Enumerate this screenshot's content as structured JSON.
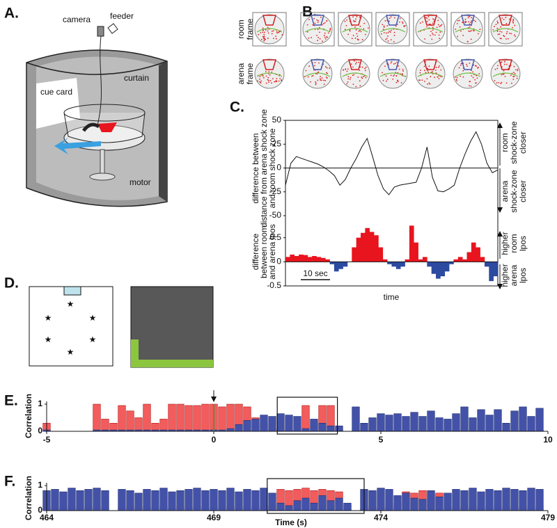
{
  "figure": {
    "panel_labels": [
      "A.",
      "B.",
      "C.",
      "D.",
      "E.",
      "F."
    ],
    "panel_a": {
      "camera": "camera",
      "feeder": "feeder",
      "curtain": "curtain",
      "cue_card": "cue card",
      "motor": "motor"
    },
    "panel_b": {
      "row_labels": [
        [
          "room",
          "frame"
        ],
        [
          "arena",
          "frame"
        ]
      ]
    }
  },
  "chart_data": [
    {
      "type": "line",
      "ylabel": [
        "difference between",
        "distance from arena shock zone",
        "and room shock zone"
      ],
      "annotations": {
        "upper": [
          "room",
          "shock-zone",
          "closer"
        ],
        "lower": [
          "arena",
          "shock-zone",
          "closer"
        ]
      },
      "values": [
        -18,
        5,
        12,
        10,
        8,
        6,
        4,
        1,
        -3,
        -8,
        -18,
        -12,
        0,
        10,
        22,
        31,
        12,
        -8,
        -22,
        -28,
        -20,
        -18,
        -17,
        -16,
        -15,
        0,
        22,
        -10,
        -24,
        -25,
        -22,
        -18,
        0,
        15,
        28,
        38,
        25,
        5,
        -5,
        -2
      ],
      "color": "#111111",
      "ylim": [
        -50,
        50
      ],
      "yticks": [
        50,
        25,
        0,
        -25,
        -50
      ]
    },
    {
      "type": "area",
      "ylabel": [
        "difference",
        "between room",
        "and arena lpos"
      ],
      "annotations": {
        "upper": [
          "higher",
          "room",
          "lpos"
        ],
        "lower": [
          "higher",
          "arena",
          "lpos"
        ]
      },
      "xlabel": "time",
      "scale_bar_label": "10 sec",
      "values": [
        0.1,
        0.15,
        0.12,
        0.15,
        0.14,
        0.1,
        0.12,
        0.1,
        0.08,
        0.05,
        -0.05,
        -0.2,
        -0.15,
        -0.1,
        0,
        0.3,
        0.5,
        0.6,
        0.7,
        0.62,
        0.55,
        0.3,
        0.05,
        -0.05,
        -0.1,
        -0.15,
        -0.1,
        0.05,
        0.75,
        0.4,
        0.05,
        0.1,
        -0.1,
        -0.25,
        -0.35,
        -0.3,
        -0.2,
        -0.05,
        0.05,
        0.1,
        0.05,
        0.2,
        0.4,
        0.3,
        0.1,
        -0.1,
        -0.4,
        -0.3
      ],
      "positive_color": "#e8141e",
      "negative_color": "#2b4aa0",
      "ylim": [
        -0.5,
        1
      ],
      "yticks": [
        0.5,
        0,
        -0.5
      ]
    },
    {
      "type": "bar",
      "ylabel": "Correlation",
      "x": [
        -5,
        -4.75,
        -4.5,
        -4.25,
        -4,
        -3.75,
        -3.5,
        -3.25,
        -3,
        -2.75,
        -2.5,
        -2.25,
        -2,
        -1.75,
        -1.5,
        -1.25,
        -1,
        -0.75,
        -0.5,
        -0.25,
        0,
        0.25,
        0.5,
        0.75,
        1,
        1.25,
        1.5,
        1.75,
        2,
        2.25,
        2.5,
        2.75,
        3,
        3.25,
        3.5,
        3.75,
        4,
        4.25,
        4.5,
        4.75,
        5,
        5.25,
        5.5,
        5.75,
        6,
        6.25,
        6.5,
        6.75,
        7,
        7.25,
        7.5,
        7.75,
        8,
        8.25,
        8.5,
        8.75,
        9,
        9.25,
        9.5,
        9.75
      ],
      "series": [
        {
          "color": "#f25c5c",
          "edgecolor": "#b01010",
          "values": [
            0.3,
            null,
            null,
            null,
            null,
            null,
            1.0,
            0.45,
            0.3,
            0.95,
            0.75,
            0.5,
            1.0,
            0.3,
            0.45,
            1.0,
            1.0,
            0.95,
            0.95,
            1.0,
            1.0,
            0.9,
            1.0,
            1.0,
            0.9,
            0.5,
            0.3,
            0.1,
            0.1,
            0.05,
            0.05,
            0.95,
            0.3,
            0.95,
            0.95,
            0.1,
            null,
            0.05,
            0.05,
            0.05,
            0.05,
            0.05,
            0.05,
            0.05,
            0.05,
            0.05,
            0.05,
            0.05,
            0.05,
            0.05,
            0.05,
            0.05,
            0.05,
            0.05,
            0.05,
            0.05,
            0.05,
            0.05,
            0.05,
            0.05
          ]
        },
        {
          "color": "#4352a8",
          "edgecolor": "#1a2a70",
          "values": [
            0.05,
            null,
            null,
            null,
            null,
            null,
            0.05,
            0.05,
            0.05,
            0.05,
            0.05,
            0.05,
            0.05,
            0.05,
            0.05,
            0.05,
            0.05,
            0.05,
            0.05,
            0.05,
            0.05,
            0.05,
            0.1,
            0.25,
            0.4,
            0.45,
            0.6,
            0.55,
            0.65,
            0.6,
            0.55,
            0.1,
            0.45,
            0.3,
            0.2,
            0.2,
            null,
            0.9,
            0.3,
            0.5,
            0.65,
            0.6,
            0.65,
            0.55,
            0.7,
            0.55,
            0.75,
            0.5,
            0.45,
            0.65,
            0.9,
            0.5,
            0.8,
            0.6,
            0.8,
            0.3,
            0.75,
            0.9,
            0.55,
            0.85
          ]
        }
      ],
      "xlim": [
        -5,
        10
      ],
      "xticks": [
        -5,
        0,
        5,
        10
      ],
      "ylim": [
        0,
        1
      ],
      "yticks": [
        0,
        1
      ],
      "highlight": [
        1.9,
        3.7
      ],
      "event_x": 0,
      "event_color": "#2e9e2e"
    },
    {
      "type": "bar",
      "ylabel": "Correlation",
      "xlabel": "Time (s)",
      "x": [
        464,
        464.25,
        464.5,
        464.75,
        465,
        465.25,
        465.5,
        465.75,
        466,
        466.25,
        466.5,
        466.75,
        467,
        467.25,
        467.5,
        467.75,
        468,
        468.25,
        468.5,
        468.75,
        469,
        469.25,
        469.5,
        469.75,
        470,
        470.25,
        470.5,
        470.75,
        471,
        471.25,
        471.5,
        471.75,
        472,
        472.25,
        472.5,
        472.75,
        473,
        473.25,
        473.5,
        473.75,
        474,
        474.25,
        474.5,
        474.75,
        475,
        475.25,
        475.5,
        475.75,
        476,
        476.25,
        476.5,
        476.75,
        477,
        477.25,
        477.5,
        477.75,
        478,
        478.25,
        478.5,
        478.75
      ],
      "series": [
        {
          "color": "#f25c5c",
          "edgecolor": "#b01010",
          "values": [
            0.15,
            0.1,
            0.15,
            0.1,
            0.15,
            0.1,
            0.15,
            0.1,
            null,
            0.1,
            0.15,
            0.1,
            0.15,
            0.1,
            0.15,
            0.1,
            0.15,
            0.1,
            0.15,
            0.1,
            0.15,
            0.1,
            0.15,
            0.1,
            0.15,
            0.1,
            0.15,
            0.2,
            0.85,
            0.8,
            0.85,
            0.9,
            0.8,
            0.85,
            0.8,
            0.75,
            0.2,
            null,
            0.1,
            0.15,
            0.1,
            0.15,
            0.3,
            0.75,
            0.7,
            0.8,
            0.65,
            0.7,
            0.1,
            0.15,
            0.1,
            0.15,
            0.1,
            0.15,
            0.1,
            0.15,
            0.1,
            0.15,
            0.1,
            0.15
          ]
        },
        {
          "color": "#4352a8",
          "edgecolor": "#1a2a70",
          "values": [
            0.8,
            0.85,
            0.75,
            0.9,
            0.8,
            0.85,
            0.9,
            0.8,
            null,
            0.85,
            0.8,
            0.7,
            0.85,
            0.8,
            0.9,
            0.75,
            0.8,
            0.85,
            0.9,
            0.8,
            0.85,
            0.8,
            0.9,
            0.75,
            0.85,
            0.8,
            0.9,
            0.7,
            0.3,
            0.2,
            0.4,
            0.5,
            0.3,
            0.6,
            0.4,
            0.5,
            0.3,
            null,
            0.85,
            0.8,
            0.9,
            0.85,
            0.6,
            0.7,
            0.5,
            0.45,
            0.8,
            0.55,
            0.7,
            0.85,
            0.8,
            0.9,
            0.75,
            0.85,
            0.8,
            0.9,
            0.85,
            0.8,
            0.9,
            0.85
          ]
        }
      ],
      "xlim": [
        464,
        479
      ],
      "xticks": [
        464,
        469,
        474,
        479
      ],
      "ylim": [
        0,
        1
      ],
      "yticks": [
        0,
        1
      ],
      "highlight": [
        470.6,
        473.5
      ]
    }
  ]
}
